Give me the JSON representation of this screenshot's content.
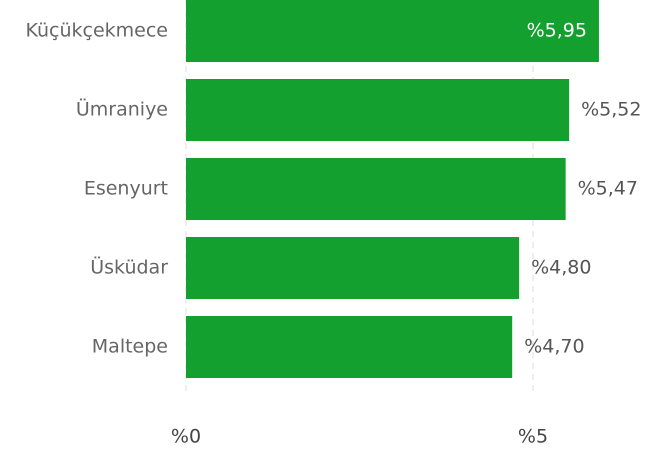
{
  "chart_data": {
    "type": "bar",
    "orientation": "horizontal",
    "categories": [
      "Küçükçekmece",
      "Ümraniye",
      "Esenyurt",
      "Üsküdar",
      "Maltepe"
    ],
    "values": [
      5.95,
      5.52,
      5.47,
      4.8,
      4.7
    ],
    "value_labels": [
      "%5,95",
      "%5,52",
      "%5,47",
      "%4,80",
      "%4,70"
    ],
    "color": "#13a02f",
    "xlim": [
      0,
      6.7
    ],
    "xticks": [
      {
        "value": 0,
        "label": "%0"
      },
      {
        "value": 5,
        "label": "%5"
      }
    ],
    "grid": true
  }
}
